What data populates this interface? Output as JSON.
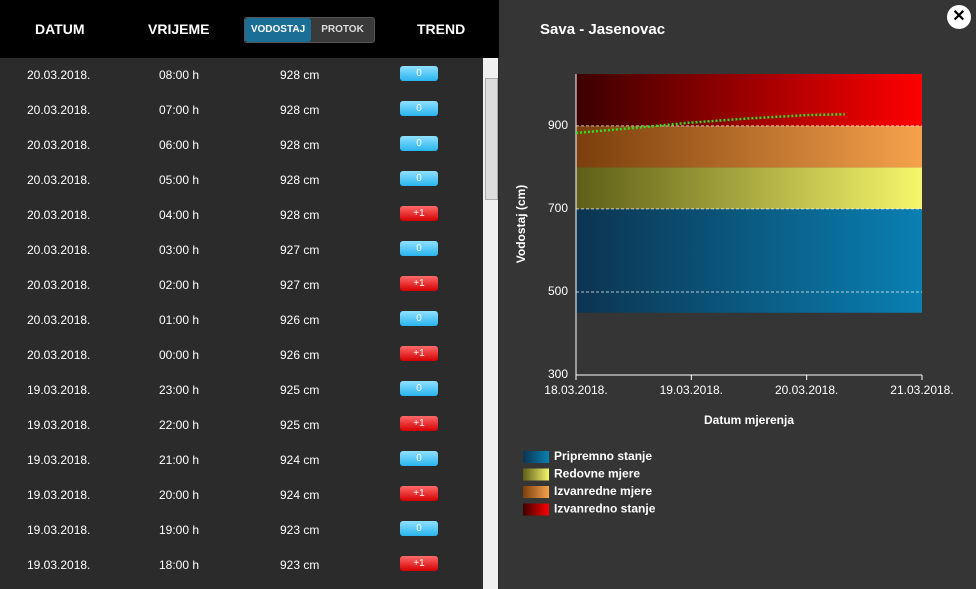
{
  "table": {
    "headers": [
      "DATUM",
      "VRIJEME",
      "TREND"
    ],
    "toggle": {
      "options": [
        "VODOSTAJ",
        "PROTOK"
      ],
      "active": 0
    },
    "rows": [
      [
        "20.03.2018.",
        "08:00 h",
        "928 cm",
        "0"
      ],
      [
        "20.03.2018.",
        "07:00 h",
        "928 cm",
        "0"
      ],
      [
        "20.03.2018.",
        "06:00 h",
        "928 cm",
        "0"
      ],
      [
        "20.03.2018.",
        "05:00 h",
        "928 cm",
        "0"
      ],
      [
        "20.03.2018.",
        "04:00 h",
        "928 cm",
        "+1"
      ],
      [
        "20.03.2018.",
        "03:00 h",
        "927 cm",
        "0"
      ],
      [
        "20.03.2018.",
        "02:00 h",
        "927 cm",
        "+1"
      ],
      [
        "20.03.2018.",
        "01:00 h",
        "926 cm",
        "0"
      ],
      [
        "20.03.2018.",
        "00:00 h",
        "926 cm",
        "+1"
      ],
      [
        "19.03.2018.",
        "23:00 h",
        "925 cm",
        "0"
      ],
      [
        "19.03.2018.",
        "22:00 h",
        "925 cm",
        "+1"
      ],
      [
        "19.03.2018.",
        "21:00 h",
        "924 cm",
        "0"
      ],
      [
        "19.03.2018.",
        "20:00 h",
        "924 cm",
        "+1"
      ],
      [
        "19.03.2018.",
        "19:00 h",
        "923 cm",
        "0"
      ],
      [
        "19.03.2018.",
        "18:00 h",
        "923 cm",
        "+1"
      ]
    ]
  },
  "chart_data": {
    "type": "line",
    "title": "Sava - Jasenovac",
    "ylabel": "Vodostaj (cm)",
    "xlabel": "Datum mjerenja",
    "xlim": [
      0,
      3
    ],
    "xticks": [
      {
        "value": 0,
        "label": "18.03.2018."
      },
      {
        "value": 1,
        "label": "19.03.2018."
      },
      {
        "value": 2,
        "label": "20.03.2018."
      },
      {
        "value": 3,
        "label": "21.03.2018."
      }
    ],
    "ylim": [
      300,
      1025
    ],
    "yticks": [
      300,
      500,
      700,
      900
    ],
    "bands": [
      {
        "name": "Pripremno stanje",
        "from": 450,
        "to": 700,
        "colors": [
          "#0c3450",
          "#0a80b2"
        ]
      },
      {
        "name": "Redovne mjere",
        "from": 700,
        "to": 800,
        "colors": [
          "#5e5e18",
          "#f6f66c"
        ]
      },
      {
        "name": "Izvanredne mjere",
        "from": 800,
        "to": 900,
        "colors": [
          "#7a3e0c",
          "#f6a24c"
        ]
      },
      {
        "name": "Izvanredno stanje",
        "from": 900,
        "to": 1025,
        "colors": [
          "#3c0000",
          "#ff0000"
        ]
      }
    ],
    "series": [
      {
        "color": "#33dd22",
        "x": [
          0,
          0.5,
          1,
          1.5,
          2,
          2.33
        ],
        "values": [
          883,
          895,
          908,
          918,
          926,
          928
        ]
      }
    ]
  }
}
